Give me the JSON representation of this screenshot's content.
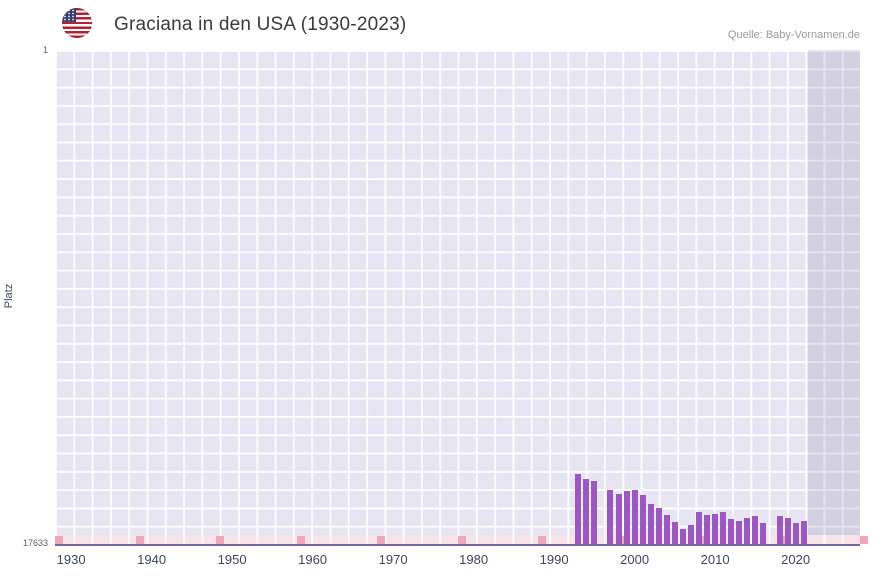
{
  "header": {
    "title": "Graciana in den USA (1930-2023)",
    "source": "Quelle: Baby-Vornamen.de",
    "flag_icon": "us-flag"
  },
  "chart_data": {
    "type": "bar",
    "title": "Graciana in den USA (1930-2023)",
    "xlabel": "",
    "ylabel": "Platz",
    "bar_color": "#9c59bd",
    "grid": true,
    "y_axis": {
      "top_label": "1",
      "bottom_label": "17633",
      "min": 1,
      "max": 17633,
      "inverted": true
    },
    "x_axis": {
      "min": 1928,
      "max": 2028,
      "tick_years": [
        1930,
        1940,
        1950,
        1960,
        1970,
        1980,
        1990,
        2000,
        2010,
        2020
      ],
      "tick_labels": [
        "1930",
        "1940",
        "1950",
        "1960",
        "1970",
        "1980",
        "1990",
        "2000",
        "2010",
        "2020"
      ]
    },
    "highlight_band": {
      "from_year": 2021.5,
      "to_year": 2028
    },
    "decade_marks": {
      "start_year": 1928,
      "step": 10,
      "color": "#efa8ba"
    },
    "points": [
      {
        "year": 1993,
        "rank": 15150
      },
      {
        "year": 1994,
        "rank": 15300
      },
      {
        "year": 1995,
        "rank": 15400
      },
      {
        "year": 1997,
        "rank": 15700
      },
      {
        "year": 1998,
        "rank": 15850
      },
      {
        "year": 1999,
        "rank": 15750
      },
      {
        "year": 2000,
        "rank": 15700
      },
      {
        "year": 2001,
        "rank": 15900
      },
      {
        "year": 2002,
        "rank": 16200
      },
      {
        "year": 2003,
        "rank": 16350
      },
      {
        "year": 2004,
        "rank": 16600
      },
      {
        "year": 2005,
        "rank": 16850
      },
      {
        "year": 2006,
        "rank": 17100
      },
      {
        "year": 2007,
        "rank": 16950
      },
      {
        "year": 2008,
        "rank": 16500
      },
      {
        "year": 2009,
        "rank": 16600
      },
      {
        "year": 2010,
        "rank": 16550
      },
      {
        "year": 2011,
        "rank": 16500
      },
      {
        "year": 2012,
        "rank": 16750
      },
      {
        "year": 2013,
        "rank": 16800
      },
      {
        "year": 2014,
        "rank": 16700
      },
      {
        "year": 2015,
        "rank": 16650
      },
      {
        "year": 2016,
        "rank": 16900
      },
      {
        "year": 2018,
        "rank": 16650
      },
      {
        "year": 2019,
        "rank": 16700
      },
      {
        "year": 2020,
        "rank": 16900
      },
      {
        "year": 2021,
        "rank": 16800
      }
    ]
  }
}
